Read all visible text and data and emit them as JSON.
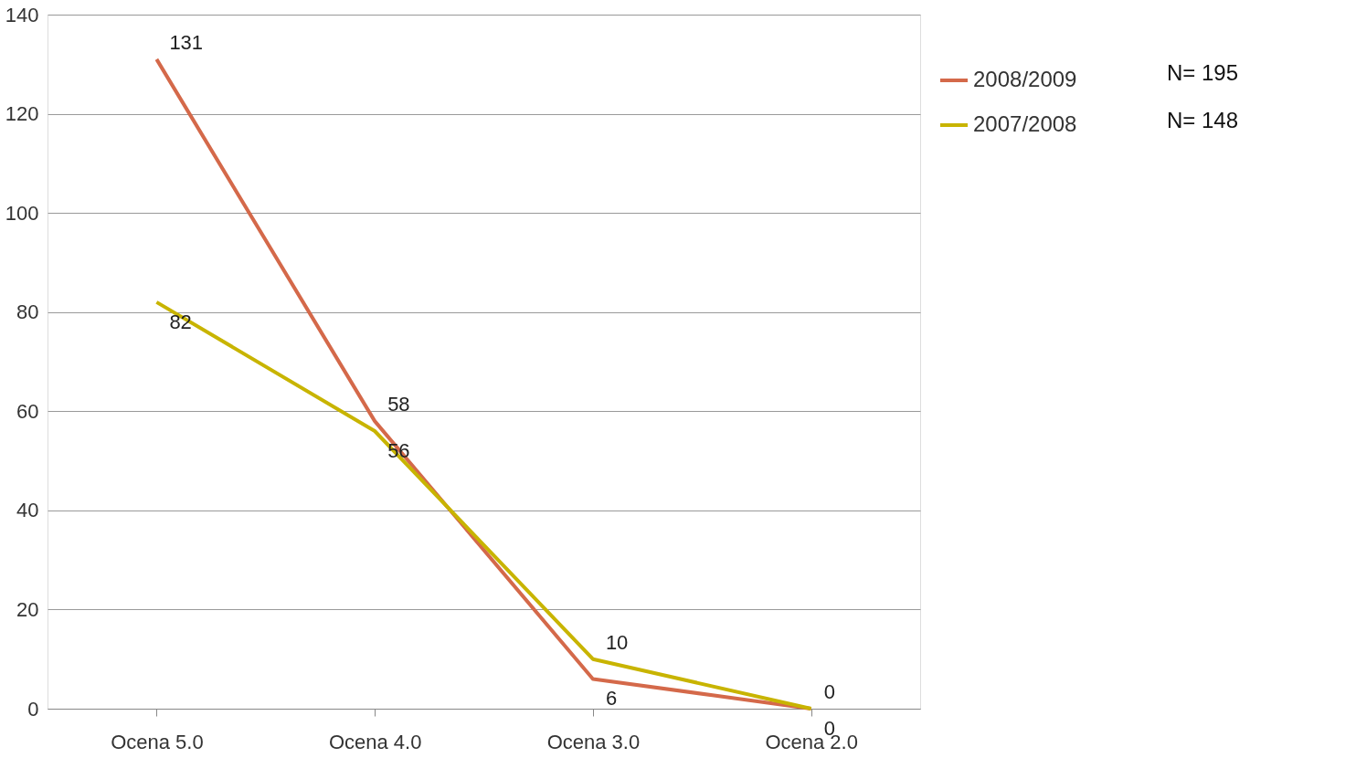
{
  "chart_data": {
    "type": "line",
    "categories": [
      "Ocena 5.0",
      "Ocena 4.0",
      "Ocena 3.0",
      "Ocena 2.0"
    ],
    "series": [
      {
        "name": "2008/2009",
        "color": "#d4694a",
        "values": [
          131,
          58,
          6,
          0
        ]
      },
      {
        "name": "2007/2008",
        "color": "#c8b400",
        "values": [
          82,
          56,
          10,
          0
        ]
      }
    ],
    "ylim": [
      0,
      140
    ],
    "yticks": [
      0,
      20,
      40,
      60,
      80,
      100,
      120,
      140
    ],
    "grid": "y",
    "legend": "top right",
    "data_labels": true,
    "marker": "none",
    "line_style": "solid",
    "annotations": [
      "N= 195",
      "N= 148"
    ]
  }
}
